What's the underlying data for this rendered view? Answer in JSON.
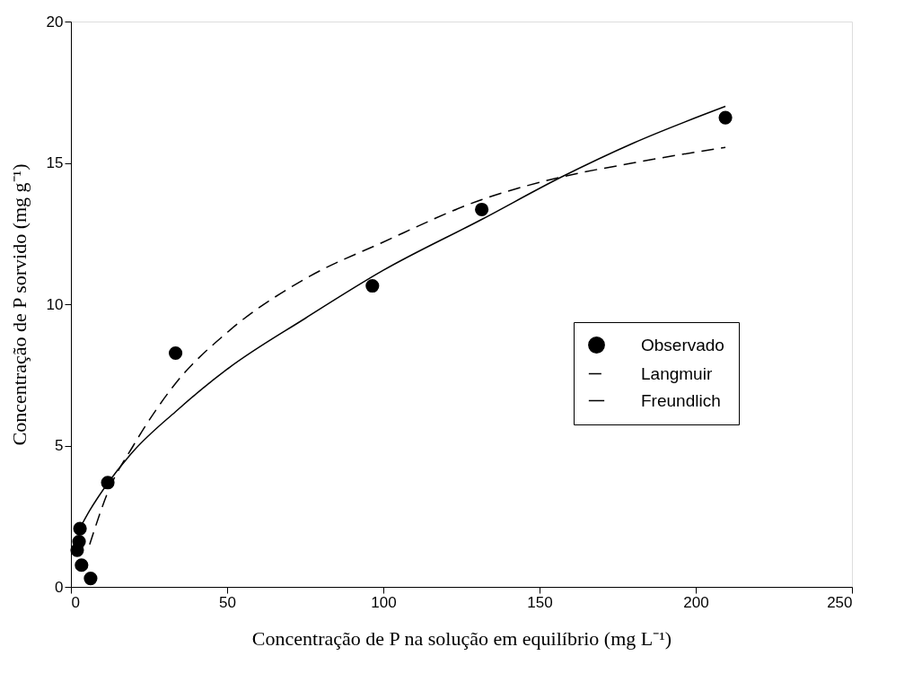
{
  "chart_data": {
    "type": "scatter",
    "xlabel": "Concentração de P na solução em equilíbrio (mg L⁻¹)",
    "ylabel": "Concentração de P sorvido (mg g⁻¹)",
    "xlim": [
      0,
      250
    ],
    "xticks": [
      0,
      50,
      100,
      150,
      200,
      250
    ],
    "ylim": [
      0,
      20
    ],
    "yticks": [
      0,
      5,
      10,
      15,
      20
    ],
    "grid": false,
    "legend": "right",
    "series": [
      {
        "name": "Observado",
        "marker": "circle",
        "color": "#000000",
        "x": [
          2.9,
          2.6,
          2.0,
          3.4,
          6.3,
          11.8,
          33.5,
          96.5,
          131.5,
          209.5
        ],
        "values": [
          2.06,
          1.6,
          1.3,
          0.77,
          0.3,
          3.69,
          8.27,
          10.65,
          13.35,
          16.6
        ]
      },
      {
        "name": "Langmuir",
        "type": "line",
        "line_style": "dashed",
        "color": "#000000",
        "x": [
          6,
          12,
          20,
          33.5,
          50,
          75,
          100,
          131.5,
          157,
          180,
          209.5
        ],
        "values": [
          1.5,
          3.4,
          5.0,
          7.2,
          9.0,
          10.9,
          12.2,
          13.7,
          14.5,
          15.0,
          15.55
        ]
      },
      {
        "name": "Freundlich",
        "type": "line",
        "line_style": "solid",
        "color": "#000000",
        "x": [
          2.5,
          6,
          12,
          20,
          33.5,
          50,
          75,
          100,
          131.5,
          157,
          180,
          209.5
        ],
        "values": [
          2.0,
          2.7,
          3.7,
          4.8,
          6.2,
          7.7,
          9.5,
          11.2,
          13.0,
          14.5,
          15.7,
          17.0
        ]
      }
    ]
  }
}
